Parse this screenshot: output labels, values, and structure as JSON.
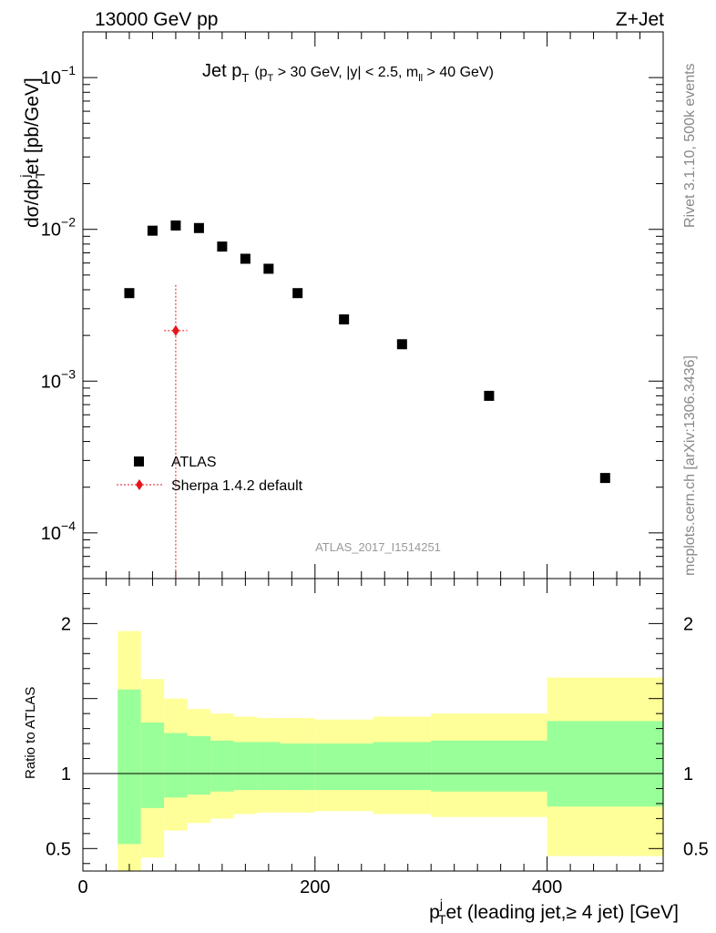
{
  "header": {
    "left": "13000 GeV pp",
    "right": "Z+Jet"
  },
  "side_labels": {
    "rivet": "Rivet 3.1.10,  500k events",
    "mcplots": "mcplots.cern.ch [arXiv:1306.3436]"
  },
  "plot_title": {
    "main": "Jet p",
    "main_sub": "T",
    "cuts_1": "(p",
    "cuts_1_sub": "T",
    "cuts_2": " > 30 GeV, |y| < 2.5, m",
    "cuts_2_sub": "ll",
    "cuts_3": " > 40 GeV)"
  },
  "analysis_id": "ATLAS_2017_I1514251",
  "y_label_top": {
    "part1": "dσ/dp",
    "sub": "T",
    "sup": "j",
    "part2": "et [pb/GeV]"
  },
  "y_label_bottom": "Ratio to ATLAS",
  "x_label": {
    "part1": "p",
    "sup": "j",
    "sub": "T",
    "part2": "et (leading jet,≥ 4 jet) [GeV]"
  },
  "legend": [
    {
      "name": "ATLAS",
      "marker": "square",
      "color": "#000000"
    },
    {
      "name": "Sherpa 1.4.2 default",
      "marker": "diamond",
      "color": "#e8141c"
    }
  ],
  "colors": {
    "data": "#000000",
    "mc": "#e8141c",
    "band_inner": "#99ff99",
    "band_outer": "#ffff99",
    "analysis_text": "#999999",
    "side_text": "#888888"
  },
  "chart_data": [
    {
      "type": "scatter",
      "panel": "main",
      "yscale": "log",
      "xlim": [
        0,
        500
      ],
      "ylim": [
        5e-05,
        0.2
      ],
      "y_ticks": [
        {
          "value": 0.1,
          "base": "10",
          "exp": "−1"
        },
        {
          "value": 0.01,
          "base": "10",
          "exp": "−2"
        },
        {
          "value": 0.001,
          "base": "10",
          "exp": "−3"
        },
        {
          "value": 0.0001,
          "base": "10",
          "exp": "−4"
        }
      ],
      "series": [
        {
          "name": "ATLAS",
          "points": [
            {
              "x": 40,
              "y": 0.0038
            },
            {
              "x": 60,
              "y": 0.0098
            },
            {
              "x": 80,
              "y": 0.0106
            },
            {
              "x": 100,
              "y": 0.0102
            },
            {
              "x": 120,
              "y": 0.0077
            },
            {
              "x": 140,
              "y": 0.0064
            },
            {
              "x": 160,
              "y": 0.0055
            },
            {
              "x": 185,
              "y": 0.0038
            },
            {
              "x": 225,
              "y": 0.00255
            },
            {
              "x": 275,
              "y": 0.00175
            },
            {
              "x": 350,
              "y": 0.0008
            },
            {
              "x": 450,
              "y": 0.00023
            }
          ]
        },
        {
          "name": "Sherpa 1.4.2 default",
          "points": [
            {
              "x": 80,
              "y": 0.00215,
              "xlo": 70,
              "xhi": 90,
              "ylo": 5e-05,
              "yhi": 0.0043
            }
          ]
        }
      ]
    },
    {
      "type": "area",
      "panel": "ratio",
      "xlim": [
        0,
        500
      ],
      "ylim": [
        0.35,
        2.3
      ],
      "x_ticks": [
        0,
        200,
        400
      ],
      "y_ticks": [
        {
          "value": 0.5,
          "label": "0.5"
        },
        {
          "value": 1,
          "label": "1"
        },
        {
          "value": 2,
          "label": "2"
        }
      ],
      "bins": [
        {
          "lo": 30,
          "hi": 50,
          "inner": [
            0.53,
            1.56
          ],
          "outer": [
            0.35,
            1.95
          ]
        },
        {
          "lo": 50,
          "hi": 70,
          "inner": [
            0.77,
            1.34
          ],
          "outer": [
            0.44,
            1.63
          ]
        },
        {
          "lo": 70,
          "hi": 90,
          "inner": [
            0.84,
            1.27
          ],
          "outer": [
            0.62,
            1.5
          ]
        },
        {
          "lo": 90,
          "hi": 110,
          "inner": [
            0.86,
            1.25
          ],
          "outer": [
            0.67,
            1.43
          ]
        },
        {
          "lo": 110,
          "hi": 130,
          "inner": [
            0.88,
            1.22
          ],
          "outer": [
            0.7,
            1.4
          ]
        },
        {
          "lo": 130,
          "hi": 150,
          "inner": [
            0.89,
            1.21
          ],
          "outer": [
            0.73,
            1.38
          ]
        },
        {
          "lo": 150,
          "hi": 170,
          "inner": [
            0.89,
            1.21
          ],
          "outer": [
            0.74,
            1.37
          ]
        },
        {
          "lo": 170,
          "hi": 200,
          "inner": [
            0.89,
            1.2
          ],
          "outer": [
            0.74,
            1.37
          ]
        },
        {
          "lo": 200,
          "hi": 250,
          "inner": [
            0.89,
            1.2
          ],
          "outer": [
            0.75,
            1.36
          ]
        },
        {
          "lo": 250,
          "hi": 300,
          "inner": [
            0.89,
            1.21
          ],
          "outer": [
            0.73,
            1.38
          ]
        },
        {
          "lo": 300,
          "hi": 400,
          "inner": [
            0.88,
            1.22
          ],
          "outer": [
            0.71,
            1.4
          ]
        },
        {
          "lo": 400,
          "hi": 500,
          "inner": [
            0.78,
            1.35
          ],
          "outer": [
            0.45,
            1.64
          ]
        }
      ],
      "reference_line": 1
    }
  ]
}
